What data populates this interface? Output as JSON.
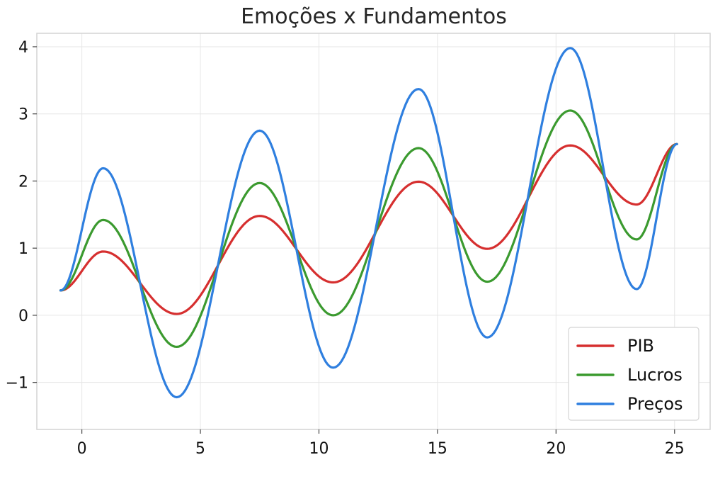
{
  "chart_data": {
    "type": "line",
    "title": "Emoções x Fundamentos",
    "xlabel": "",
    "ylabel": "",
    "xlim": [
      -1.9,
      26.5
    ],
    "ylim": [
      -1.7,
      4.2
    ],
    "xticks": [
      0,
      5,
      10,
      15,
      20,
      25
    ],
    "yticks": [
      -1,
      0,
      1,
      2,
      3,
      4
    ],
    "ytick_labels": [
      "−1",
      "0",
      "1",
      "2",
      "3",
      "4"
    ],
    "grid": true,
    "legend_position": "lower-right",
    "x_start": -0.9,
    "x_end": 25.1,
    "series": [
      {
        "name": "PIB",
        "color": "#d62f2f",
        "x": [
          -0.9,
          0.9,
          4.0,
          7.5,
          10.6,
          14.2,
          17.1,
          20.6,
          23.4,
          25.1
        ],
        "y": [
          0.37,
          0.95,
          0.02,
          1.48,
          0.49,
          1.99,
          0.99,
          2.53,
          1.65,
          2.55
        ]
      },
      {
        "name": "Lucros",
        "color": "#3b9a2f",
        "x": [
          -0.9,
          0.9,
          4.0,
          7.5,
          10.6,
          14.2,
          17.1,
          20.6,
          23.4,
          25.1
        ],
        "y": [
          0.37,
          1.42,
          -0.47,
          1.97,
          0.0,
          2.49,
          0.5,
          3.05,
          1.13,
          2.55
        ]
      },
      {
        "name": "Preços",
        "color": "#2f7fdf",
        "x": [
          -0.9,
          0.9,
          4.0,
          7.5,
          10.6,
          14.2,
          17.1,
          20.6,
          23.4,
          25.1
        ],
        "y": [
          0.37,
          2.19,
          -1.22,
          2.75,
          -0.78,
          3.37,
          -0.33,
          3.98,
          0.39,
          2.55
        ]
      }
    ]
  }
}
